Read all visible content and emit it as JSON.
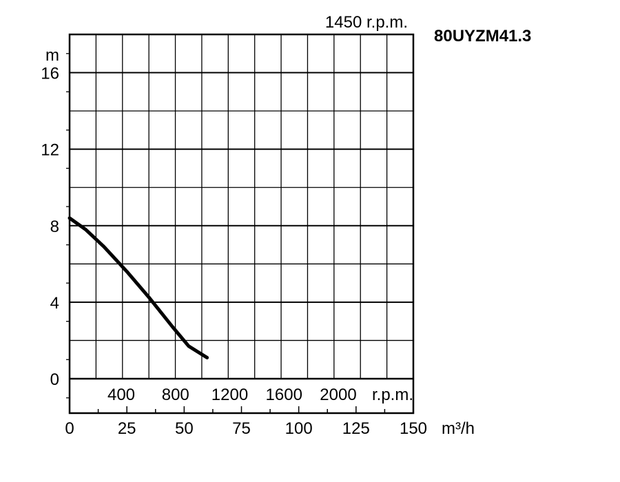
{
  "chart_data": {
    "type": "line",
    "model": "80UYZM41.3",
    "speed_label": "1450 r.p.m.",
    "y_unit": "m",
    "x_unit": "m³/h",
    "ylim": [
      -1.8,
      18
    ],
    "xlim": [
      0,
      150
    ],
    "y_ticks": [
      {
        "value": 0,
        "label": "0"
      },
      {
        "value": 4,
        "label": "4"
      },
      {
        "value": 8,
        "label": "8"
      },
      {
        "value": 12,
        "label": "12"
      },
      {
        "value": 16,
        "label": "16"
      }
    ],
    "x_ticks": [
      {
        "value": 0,
        "label": "0"
      },
      {
        "value": 25,
        "label": "25"
      },
      {
        "value": 50,
        "label": "50"
      },
      {
        "value": 75,
        "label": "75"
      },
      {
        "value": 100,
        "label": "100"
      },
      {
        "value": 125,
        "label": "125"
      },
      {
        "value": 150,
        "label": "150"
      }
    ],
    "secondary_scale": {
      "labels": [
        {
          "value": 400,
          "label": "400"
        },
        {
          "value": 800,
          "label": "800"
        },
        {
          "value": 1200,
          "label": "1200"
        },
        {
          "value": 1600,
          "label": "1600"
        },
        {
          "value": 2000,
          "label": "2000"
        }
      ],
      "unit": "r.p.m."
    },
    "grid": true,
    "series": [
      {
        "color": "#000000",
        "points": [
          [
            0,
            8.4
          ],
          [
            7,
            7.8
          ],
          [
            15,
            6.9
          ],
          [
            25,
            5.6
          ],
          [
            35,
            4.2
          ],
          [
            45,
            2.7
          ],
          [
            52,
            1.7
          ],
          [
            60,
            1.1
          ]
        ]
      }
    ]
  }
}
